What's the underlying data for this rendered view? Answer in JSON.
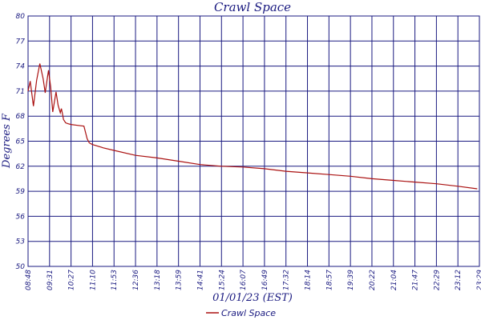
{
  "chart_data": {
    "type": "line",
    "title": "Crawl Space",
    "xlabel": "01/01/23 (EST)",
    "ylabel": "Degrees F",
    "ylim": [
      50,
      80
    ],
    "yticks": [
      "80",
      "77",
      "74",
      "71",
      "68",
      "65",
      "62",
      "59",
      "56",
      "53",
      "50"
    ],
    "xticks": [
      "08:48",
      "09:31",
      "10:27",
      "11:10",
      "11:53",
      "12:36",
      "13:18",
      "13:59",
      "14:41",
      "15:24",
      "16:07",
      "16:49",
      "17:32",
      "18:14",
      "18:57",
      "19:39",
      "20:22",
      "21:04",
      "21:47",
      "22:29",
      "23:12",
      "23:29"
    ],
    "grid": true,
    "legend_position": "bottom",
    "series": [
      {
        "name": "Crawl Space",
        "color": "#aa1111",
        "x": [
          0,
          0.1,
          0.25,
          0.4,
          0.55,
          0.7,
          0.8,
          0.9,
          0.95,
          1.05,
          1.15,
          1.3,
          1.4,
          1.5,
          1.55,
          1.6,
          1.65,
          1.75,
          1.85,
          2.0,
          2.3,
          2.6,
          2.75,
          2.85,
          3.0,
          3.5,
          4.0,
          5.0,
          6.0,
          7.0,
          8.0,
          9.0,
          10.0,
          11.0,
          12.0,
          13.0,
          14.0,
          15.0,
          16.0,
          17.0,
          18.0,
          19.0,
          20.0,
          20.9
        ],
        "y": [
          71,
          72.2,
          69.2,
          72.3,
          74.3,
          72.5,
          70.8,
          72.6,
          73.5,
          71.5,
          68.5,
          70.9,
          69.3,
          68.4,
          68.9,
          68.3,
          67.6,
          67.2,
          67.1,
          67.0,
          66.9,
          66.8,
          65.3,
          64.8,
          64.6,
          64.2,
          63.9,
          63.3,
          63.0,
          62.6,
          62.2,
          62.0,
          61.9,
          61.7,
          61.4,
          61.2,
          61.0,
          60.8,
          60.5,
          60.3,
          60.1,
          59.9,
          59.6,
          59.3
        ]
      }
    ]
  }
}
